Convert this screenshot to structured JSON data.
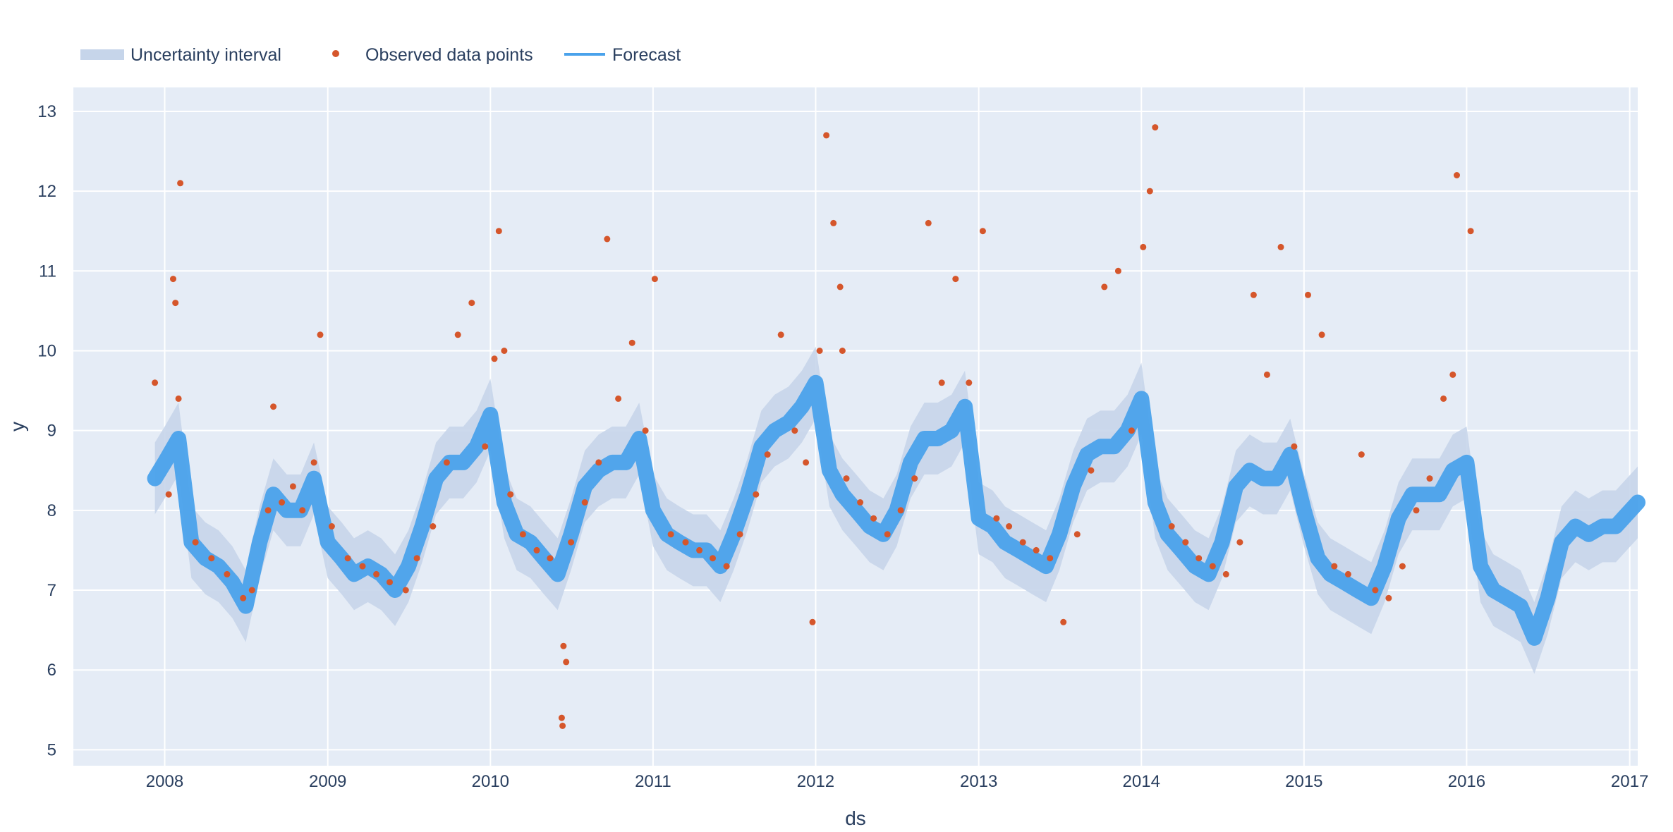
{
  "chart_data": {
    "type": "line",
    "title": "",
    "xlabel": "ds",
    "ylabel": "y",
    "xlim": [
      "2007-06-10",
      "2017-01-19"
    ],
    "ylim": [
      4.8,
      13.3
    ],
    "x_ticks": [
      "2008",
      "2009",
      "2010",
      "2011",
      "2012",
      "2013",
      "2014",
      "2015",
      "2016",
      "2017"
    ],
    "y_ticks": [
      5,
      6,
      7,
      8,
      9,
      10,
      11,
      12,
      13
    ],
    "grid": true,
    "legend_position": "top-left",
    "legend": [
      {
        "name": "Uncertainty interval",
        "kind": "band",
        "color": "#c6d5ea"
      },
      {
        "name": "Observed data points",
        "kind": "marker",
        "color": "#d5562b"
      },
      {
        "name": "Forecast",
        "kind": "line",
        "color": "#4aa2eb"
      }
    ],
    "series": [
      {
        "name": "Forecast",
        "color": "#4aa2eb",
        "x": [
          "2007-12-10",
          "2008-01-01",
          "2008-02-01",
          "2008-03-01",
          "2008-04-01",
          "2008-05-01",
          "2008-06-01",
          "2008-07-01",
          "2008-08-01",
          "2008-09-01",
          "2008-10-01",
          "2008-11-01",
          "2008-12-01",
          "2009-01-01",
          "2009-02-01",
          "2009-03-01",
          "2009-04-01",
          "2009-05-01",
          "2009-06-01",
          "2009-07-01",
          "2009-08-01",
          "2009-09-01",
          "2009-10-01",
          "2009-11-01",
          "2009-12-01",
          "2010-01-01",
          "2010-02-01",
          "2010-03-01",
          "2010-04-01",
          "2010-05-01",
          "2010-06-01",
          "2010-07-01",
          "2010-08-01",
          "2010-09-01",
          "2010-10-01",
          "2010-11-01",
          "2010-12-01",
          "2011-01-01",
          "2011-02-01",
          "2011-03-01",
          "2011-04-01",
          "2011-05-01",
          "2011-06-01",
          "2011-07-01",
          "2011-08-01",
          "2011-09-01",
          "2011-10-01",
          "2011-11-01",
          "2011-12-01",
          "2012-01-01",
          "2012-02-01",
          "2012-03-01",
          "2012-04-01",
          "2012-05-01",
          "2012-06-01",
          "2012-07-01",
          "2012-08-01",
          "2012-09-01",
          "2012-10-01",
          "2012-11-01",
          "2012-12-01",
          "2013-01-01",
          "2013-02-01",
          "2013-03-01",
          "2013-04-01",
          "2013-05-01",
          "2013-06-01",
          "2013-07-01",
          "2013-08-01",
          "2013-09-01",
          "2013-10-01",
          "2013-11-01",
          "2013-12-01",
          "2014-01-01",
          "2014-02-01",
          "2014-03-01",
          "2014-04-01",
          "2014-05-01",
          "2014-06-01",
          "2014-07-01",
          "2014-08-01",
          "2014-09-01",
          "2014-10-01",
          "2014-11-01",
          "2014-12-01",
          "2015-01-01",
          "2015-02-01",
          "2015-03-01",
          "2015-04-01",
          "2015-05-01",
          "2015-06-01",
          "2015-07-01",
          "2015-08-01",
          "2015-09-01",
          "2015-10-01",
          "2015-11-01",
          "2015-12-01",
          "2016-01-01",
          "2016-02-01",
          "2016-03-01",
          "2016-04-01",
          "2016-05-01",
          "2016-06-01",
          "2016-07-01",
          "2016-08-01",
          "2016-09-01",
          "2016-10-01",
          "2016-11-01",
          "2016-12-01",
          "2017-01-19"
        ],
        "y": [
          8.4,
          8.6,
          8.9,
          7.6,
          7.4,
          7.3,
          7.1,
          6.8,
          7.6,
          8.2,
          8.0,
          8.0,
          8.4,
          7.6,
          7.4,
          7.2,
          7.3,
          7.2,
          7.0,
          7.3,
          7.8,
          8.4,
          8.6,
          8.6,
          8.8,
          9.2,
          8.1,
          7.7,
          7.6,
          7.4,
          7.2,
          7.7,
          8.3,
          8.5,
          8.6,
          8.6,
          8.9,
          8.0,
          7.7,
          7.6,
          7.5,
          7.5,
          7.3,
          7.7,
          8.2,
          8.8,
          9.0,
          9.1,
          9.3,
          9.6,
          8.5,
          8.2,
          8.0,
          7.8,
          7.7,
          8.0,
          8.6,
          8.9,
          8.9,
          9.0,
          9.3,
          7.9,
          7.8,
          7.6,
          7.5,
          7.4,
          7.3,
          7.7,
          8.3,
          8.7,
          8.8,
          8.8,
          9.0,
          9.4,
          8.1,
          7.7,
          7.5,
          7.3,
          7.2,
          7.6,
          8.3,
          8.5,
          8.4,
          8.4,
          8.7,
          8.0,
          7.4,
          7.2,
          7.1,
          7.0,
          6.9,
          7.3,
          7.9,
          8.2,
          8.2,
          8.2,
          8.5,
          8.6,
          7.3,
          7.0,
          6.9,
          6.8,
          6.4,
          6.9,
          7.6,
          7.8,
          7.7,
          7.8,
          7.8,
          8.1
        ]
      }
    ],
    "uncertainty_interval": {
      "name": "Uncertainty interval",
      "half_width": 0.45
    },
    "observed": {
      "name": "Observed data points",
      "color": "#d5562b",
      "x": [
        "2007-12-10",
        "2008-01-10",
        "2008-02-01",
        "2008-02-05",
        "2008-01-20",
        "2008-01-25",
        "2008-03-10",
        "2008-04-15",
        "2008-05-20",
        "2008-06-25",
        "2008-07-15",
        "2008-08-20",
        "2008-09-01",
        "2008-09-20",
        "2008-10-15",
        "2008-11-05",
        "2008-12-01",
        "2008-12-15",
        "2009-01-10",
        "2009-02-15",
        "2009-03-20",
        "2009-04-20",
        "2009-05-20",
        "2009-06-25",
        "2009-07-20",
        "2009-08-25",
        "2009-09-25",
        "2009-10-20",
        "2009-11-20",
        "2009-12-20",
        "2010-01-10",
        "2010-01-20",
        "2010-02-01",
        "2010-02-15",
        "2010-03-15",
        "2010-04-15",
        "2010-05-15",
        "2010-06-10",
        "2010-06-12",
        "2010-06-14",
        "2010-06-20",
        "2010-07-01",
        "2010-08-01",
        "2010-09-01",
        "2010-09-20",
        "2010-10-15",
        "2010-11-15",
        "2010-12-15",
        "2011-01-05",
        "2011-02-10",
        "2011-03-15",
        "2011-04-15",
        "2011-05-15",
        "2011-06-15",
        "2011-07-15",
        "2011-08-20",
        "2011-09-15",
        "2011-10-15",
        "2011-11-15",
        "2011-12-10",
        "2011-12-25",
        "2012-01-10",
        "2012-01-25",
        "2012-02-10",
        "2012-02-25",
        "2012-03-01",
        "2012-03-10",
        "2012-04-10",
        "2012-05-10",
        "2012-06-10",
        "2012-07-10",
        "2012-08-10",
        "2012-09-10",
        "2012-10-10",
        "2012-11-10",
        "2012-12-10",
        "2013-01-10",
        "2013-02-10",
        "2013-03-10",
        "2013-04-10",
        "2013-05-10",
        "2013-06-10",
        "2013-07-10",
        "2013-08-10",
        "2013-09-10",
        "2013-10-10",
        "2013-11-10",
        "2013-12-10",
        "2014-01-05",
        "2014-01-20",
        "2014-02-01",
        "2014-03-10",
        "2014-04-10",
        "2014-05-10",
        "2014-06-10",
        "2014-07-10",
        "2014-08-10",
        "2014-09-10",
        "2014-10-10",
        "2014-11-10",
        "2014-12-10",
        "2015-01-10",
        "2015-02-10",
        "2015-03-10",
        "2015-04-10",
        "2015-05-10",
        "2015-06-10",
        "2015-07-10",
        "2015-08-10",
        "2015-09-10",
        "2015-10-10",
        "2015-11-10",
        "2015-12-01",
        "2015-12-10",
        "2016-01-10"
      ],
      "y": [
        9.6,
        8.2,
        9.4,
        12.1,
        10.9,
        10.6,
        7.6,
        7.4,
        7.2,
        6.9,
        7.0,
        8.0,
        9.3,
        8.1,
        8.3,
        8.0,
        8.6,
        10.2,
        7.8,
        7.4,
        7.3,
        7.2,
        7.1,
        7.0,
        7.4,
        7.8,
        8.6,
        10.2,
        10.6,
        8.8,
        9.9,
        11.5,
        10.0,
        8.2,
        7.7,
        7.5,
        7.4,
        5.4,
        5.3,
        6.3,
        6.1,
        7.6,
        8.1,
        8.6,
        11.4,
        9.4,
        10.1,
        9.0,
        10.9,
        7.7,
        7.6,
        7.5,
        7.4,
        7.3,
        7.7,
        8.2,
        8.7,
        10.2,
        9.0,
        8.6,
        6.6,
        10.0,
        12.7,
        11.6,
        10.8,
        10.0,
        8.4,
        8.1,
        7.9,
        7.7,
        8.0,
        8.4,
        11.6,
        9.6,
        10.9,
        9.6,
        11.5,
        7.9,
        7.8,
        7.6,
        7.5,
        7.4,
        6.6,
        7.7,
        8.5,
        10.8,
        11.0,
        9.0,
        11.3,
        12.0,
        12.8,
        7.8,
        7.6,
        7.4,
        7.3,
        7.2,
        7.6,
        10.7,
        9.7,
        11.3,
        8.8,
        10.7,
        10.2,
        7.3,
        7.2,
        8.7,
        7.0,
        6.9,
        7.3,
        8.0,
        8.4,
        9.4,
        9.7,
        12.2,
        11.5
      ]
    }
  }
}
